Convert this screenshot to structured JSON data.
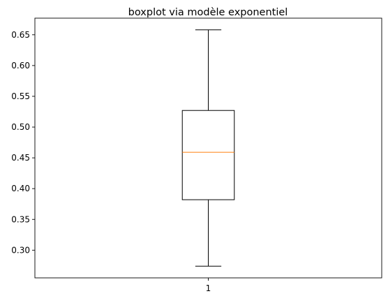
{
  "chart_data": {
    "type": "boxplot",
    "title": "boxplot via modèle exponentiel",
    "xlabel": "",
    "ylabel": "",
    "categories": [
      "1"
    ],
    "boxes": [
      {
        "category": "1",
        "whisker_low": 0.274,
        "q1": 0.382,
        "median": 0.459,
        "q3": 0.527,
        "whisker_high": 0.658
      }
    ],
    "ylim": [
      0.255,
      0.677
    ],
    "yticks": [
      0.3,
      0.35,
      0.4,
      0.45,
      0.5,
      0.55,
      0.6,
      0.65
    ],
    "ytick_labels": [
      "0.30",
      "0.35",
      "0.40",
      "0.45",
      "0.50",
      "0.55",
      "0.60",
      "0.65"
    ],
    "grid": false,
    "colors": {
      "box": "#000000",
      "median": "#ff7f0e",
      "axes": "#000000"
    }
  }
}
